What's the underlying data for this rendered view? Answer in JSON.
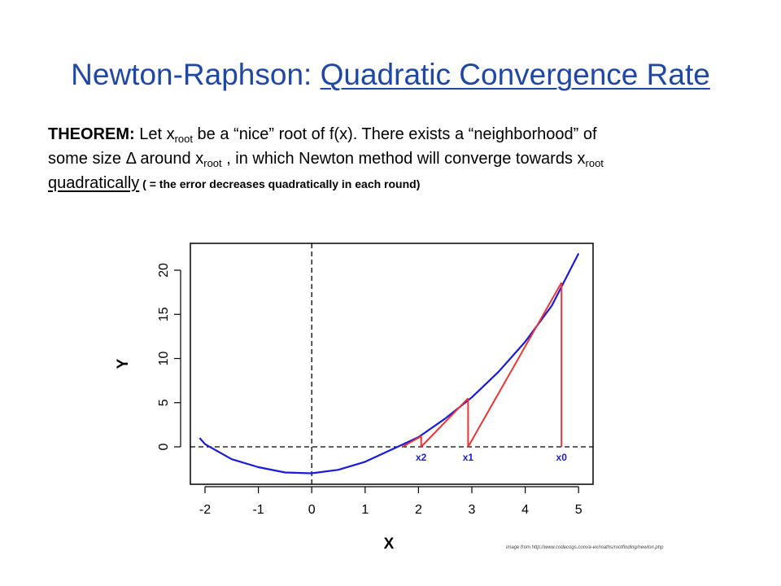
{
  "slide": {
    "title_plain": "Newton-Raphson: ",
    "title_underlined": "Quadratic Convergence Rate",
    "theorem_label": "THEOREM:",
    "t1": " Let x",
    "sub_root": "root",
    "t2": " be a “nice” root of f(x). There exists a “neighborhood” of",
    "t3": "some size Δ around x",
    "t4": " , in which Newton method will converge towards x",
    "t5": "quadratically",
    "t6": " ( = the error decreases quadratically in each round)",
    "credit": "image from http://www.codecogs.com/a-ex/maths/rootfinding/newton.php"
  },
  "chart_data": {
    "type": "line",
    "xlabel": "X",
    "ylabel": "Y",
    "xlim": [
      -2.0,
      5.0
    ],
    "ylim": [
      -3.0,
      22.0
    ],
    "xticks": [
      -2,
      -1,
      0,
      1,
      2,
      3,
      4,
      5
    ],
    "yticks": [
      0,
      5,
      10,
      15,
      20
    ],
    "curve": {
      "color": "#1a1adb",
      "x": [
        -2.1,
        -2.0,
        -1.5,
        -1.0,
        -0.5,
        0.0,
        0.5,
        1.0,
        1.5,
        2.0,
        2.5,
        3.0,
        3.5,
        4.0,
        4.5,
        5.0
      ],
      "y": [
        1.0,
        0.3,
        -1.4,
        -2.3,
        -2.9,
        -3.0,
        -2.6,
        -1.7,
        -0.3,
        1.1,
        3.2,
        5.6,
        8.5,
        11.9,
        16.0,
        21.9
      ]
    },
    "zero_line": {
      "y": 0,
      "style": "dashed"
    },
    "vertical_line": {
      "x": 0,
      "style": "dashed"
    },
    "iterations": {
      "color": "#ee3333",
      "points": [
        {
          "label": "x0",
          "x": 4.68,
          "fx": 18.6
        },
        {
          "label": "x1",
          "x": 2.93,
          "fx": 5.5
        },
        {
          "label": "x2",
          "x": 2.05,
          "fx": 1.2
        },
        {
          "label": "",
          "x": 1.7,
          "fx": 0.0
        }
      ]
    }
  }
}
